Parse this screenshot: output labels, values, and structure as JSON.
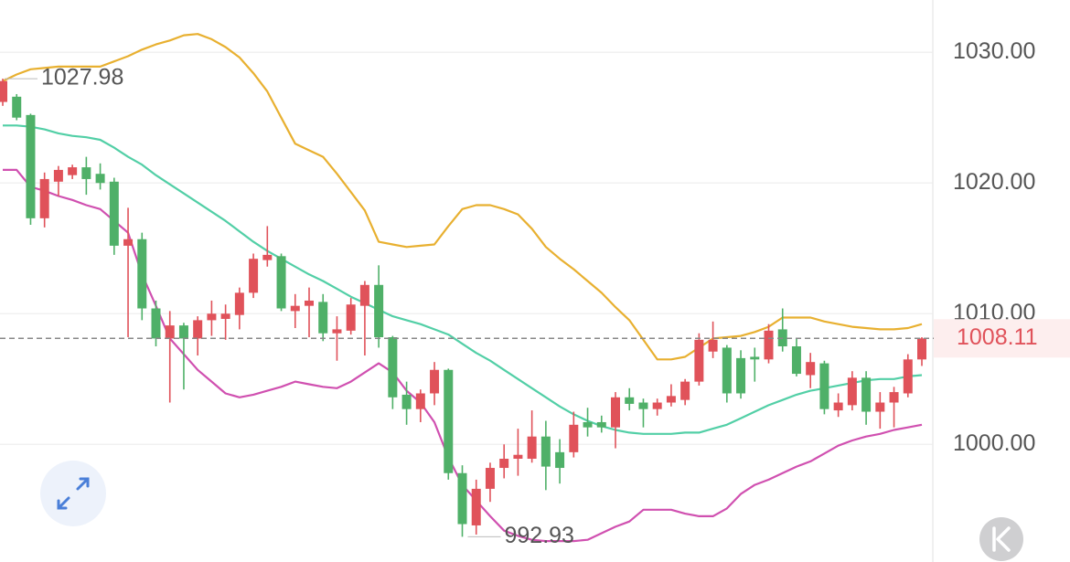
{
  "chart_data": {
    "type": "candlestick",
    "up_color": "#e0525a",
    "down_color": "#4fb068",
    "ylim": [
      991.0,
      1034.0
    ],
    "yticks": [
      {
        "value": 1000,
        "label": "1000.00"
      },
      {
        "value": 1010,
        "label": "1010.00"
      },
      {
        "value": 1020,
        "label": "1020.00"
      },
      {
        "value": 1030,
        "label": "1030.00"
      }
    ],
    "grid": true,
    "open": [
      1026.2,
      1026.6,
      1025.2,
      1017.3,
      1020.1,
      1020.6,
      1021.2,
      1020.7,
      1020.1,
      1015.2,
      1015.7,
      1010.4,
      1008.1,
      1009.1,
      1008.1,
      1009.5,
      1009.6,
      1009.9,
      1011.6,
      1014.1,
      1014.4,
      1010.2,
      1010.6,
      1010.9,
      1008.5,
      1008.7,
      1010.6,
      1012.2,
      1008.2,
      1003.8,
      1002.7,
      1003.9,
      1005.7,
      997.8,
      993.8,
      996.6,
      998.2,
      998.9,
      998.9,
      1000.6,
      999.4,
      999.4,
      1001.7,
      1001.7,
      1001.3,
      1003.6,
      1003.2,
      1002.7,
      1003.2,
      1003.4,
      1004.8,
      1007.1,
      1007.4,
      1006.6,
      1006.7,
      1006.5,
      1008.8,
      1007.5,
      1005.3,
      1006.2,
      1002.6,
      1003.0,
      1005.1,
      1002.5,
      1003.2,
      1003.9,
      1006.5
    ],
    "high": [
      1027.98,
      1026.8,
      1025.3,
      1020.8,
      1021.3,
      1021.4,
      1022.0,
      1021.5,
      1020.4,
      1018.1,
      1016.2,
      1011.0,
      1010.2,
      1009.3,
      1009.8,
      1011.0,
      1010.7,
      1012.0,
      1014.6,
      1016.7,
      1014.6,
      1011.5,
      1012.0,
      1011.5,
      1009.8,
      1011.2,
      1012.5,
      1013.7,
      1008.3,
      1004.8,
      1004.2,
      1006.3,
      1005.8,
      998.4,
      997.3,
      998.6,
      1000.0,
      1001.2,
      1002.6,
      1001.8,
      1000.4,
      1002.5,
      1002.8,
      1002.2,
      1004.0,
      1004.3,
      1003.5,
      1003.5,
      1004.6,
      1005.0,
      1008.5,
      1009.4,
      1007.6,
      1007.2,
      1007.4,
      1009.2,
      1010.4,
      1008.1,
      1007.0,
      1006.4,
      1003.9,
      1005.6,
      1005.6,
      1004.0,
      1004.4,
      1006.9,
      1008.2
    ],
    "low": [
      1025.9,
      1024.8,
      1016.8,
      1016.6,
      1019.0,
      1020.3,
      1019.1,
      1019.5,
      1014.5,
      1008.2,
      1009.5,
      1007.5,
      1003.2,
      1004.2,
      1006.8,
      1008.3,
      1008.0,
      1008.8,
      1011.2,
      1013.6,
      1010.2,
      1008.9,
      1008.2,
      1007.9,
      1006.4,
      1008.4,
      1006.8,
      1007.4,
      1002.7,
      1001.5,
      1001.7,
      1003.0,
      997.3,
      992.93,
      993.1,
      995.6,
      997.4,
      997.6,
      998.6,
      996.5,
      997.0,
      999.0,
      1000.6,
      1000.9,
      999.7,
      1002.6,
      1001.3,
      1002.2,
      1002.9,
      1003.0,
      1004.5,
      1006.6,
      1003.2,
      1003.5,
      1004.8,
      1006.2,
      1007.1,
      1005.2,
      1004.3,
      1002.3,
      1002.1,
      1002.6,
      1001.5,
      1001.2,
      1001.3,
      1003.6,
      1006.0
    ],
    "close": [
      1027.8,
      1025.0,
      1017.3,
      1020.3,
      1021.0,
      1021.2,
      1020.3,
      1020.0,
      1015.2,
      1015.7,
      1010.4,
      1008.1,
      1009.1,
      1008.1,
      1009.5,
      1010.0,
      1010.0,
      1011.6,
      1014.2,
      1014.5,
      1010.4,
      1010.6,
      1011.0,
      1008.5,
      1008.8,
      1010.7,
      1012.2,
      1008.2,
      1003.6,
      1002.7,
      1003.9,
      1005.7,
      997.8,
      993.9,
      996.6,
      998.2,
      998.9,
      999.2,
      1000.6,
      998.3,
      998.2,
      1001.5,
      1001.3,
      1001.3,
      1003.6,
      1003.1,
      1002.7,
      1003.2,
      1003.7,
      1004.8,
      1008.0,
      1008.0,
      1003.9,
      1003.9,
      1006.5,
      1008.7,
      1007.5,
      1005.4,
      1006.3,
      1002.7,
      1003.2,
      1005.1,
      1002.5,
      1003.2,
      1004.0,
      1006.5,
      1008.11
    ],
    "series": [
      {
        "color": "#e8b030",
        "values": [
          1027.8,
          1028.3,
          1028.7,
          1028.8,
          1028.9,
          1028.9,
          1028.9,
          1028.9,
          1029.3,
          1029.7,
          1030.2,
          1030.6,
          1030.9,
          1031.3,
          1031.4,
          1031.0,
          1030.4,
          1029.6,
          1028.4,
          1027.0,
          1025.0,
          1023.0,
          1022.5,
          1022.0,
          1020.7,
          1019.3,
          1017.9,
          1015.5,
          1015.3,
          1015.1,
          1015.2,
          1015.3,
          1016.7,
          1018.0,
          1018.3,
          1018.3,
          1018.0,
          1017.6,
          1016.5,
          1015.1,
          1014.2,
          1013.4,
          1012.5,
          1011.6,
          1010.5,
          1009.5,
          1008.0,
          1006.5,
          1006.5,
          1006.7,
          1007.4,
          1008.1,
          1008.2,
          1008.3,
          1008.6,
          1009.0,
          1009.7,
          1009.7,
          1009.7,
          1009.4,
          1009.2,
          1009.0,
          1008.9,
          1008.8,
          1008.8,
          1008.9,
          1009.2
        ]
      },
      {
        "color": "#52cfa6",
        "values": [
          1024.4,
          1024.4,
          1024.3,
          1024.1,
          1023.8,
          1023.6,
          1023.5,
          1023.3,
          1022.7,
          1022.0,
          1021.4,
          1020.6,
          1019.9,
          1019.2,
          1018.5,
          1017.8,
          1017.1,
          1016.3,
          1015.5,
          1014.8,
          1014.2,
          1013.6,
          1013.0,
          1012.5,
          1011.9,
          1011.3,
          1010.8,
          1010.3,
          1009.8,
          1009.5,
          1009.2,
          1008.8,
          1008.4,
          1007.7,
          1007.0,
          1006.4,
          1005.7,
          1005.0,
          1004.3,
          1003.6,
          1002.9,
          1002.3,
          1001.8,
          1001.4,
          1001.1,
          1000.9,
          1000.8,
          1000.8,
          1000.8,
          1000.9,
          1000.9,
          1001.2,
          1001.5,
          1002.0,
          1002.5,
          1003.0,
          1003.4,
          1003.8,
          1004.1,
          1004.3,
          1004.5,
          1004.7,
          1004.9,
          1005.0,
          1005.0,
          1005.2,
          1005.3
        ]
      },
      {
        "color": "#d050b0",
        "values": [
          1021.0,
          1021.0,
          1019.7,
          1019.4,
          1019.0,
          1018.7,
          1018.3,
          1018.0,
          1017.1,
          1016.2,
          1013.0,
          1010.6,
          1008.1,
          1006.9,
          1005.7,
          1004.8,
          1003.9,
          1003.6,
          1003.8,
          1004.1,
          1004.4,
          1004.8,
          1004.6,
          1004.4,
          1004.3,
          1004.8,
          1005.5,
          1006.2,
          1005.5,
          1004.1,
          1003.2,
          1001.7,
          999.0,
          996.9,
          995.7,
          994.5,
          993.4,
          993.0,
          992.7,
          992.6,
          992.6,
          992.6,
          992.7,
          993.2,
          993.7,
          994.1,
          995.0,
          995.0,
          995.0,
          994.7,
          994.5,
          994.5,
          995.1,
          996.2,
          996.9,
          997.3,
          997.8,
          998.3,
          998.7,
          999.3,
          999.9,
          1000.3,
          1000.6,
          1000.8,
          1001.1,
          1001.3,
          1001.5
        ]
      }
    ]
  }
}
